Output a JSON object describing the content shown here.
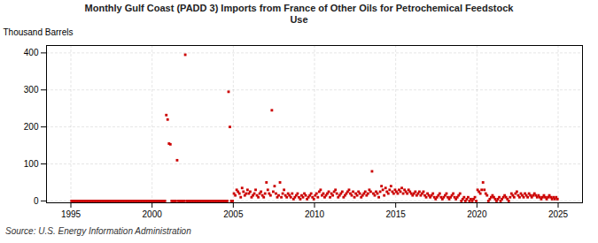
{
  "chart_data": {
    "type": "scatter",
    "title": "Monthly Gulf Coast (PADD 3) Imports from France of Other Oils for Petrochemical Feedstock\nUse",
    "ylabel": "Thousand Barrels",
    "source": "Source: U.S. Energy Information Administration",
    "color": "#cc0000",
    "marker": "square",
    "grid": true,
    "xlim": [
      1993.5,
      2026.5
    ],
    "ylim": [
      -5,
      420
    ],
    "xticks": [
      1995,
      2000,
      2005,
      2010,
      2015,
      2020,
      2025
    ],
    "yticks": [
      0,
      100,
      200,
      300,
      400
    ],
    "x": [
      1995.0416666666667,
      1995.125,
      1995.2083333333333,
      1995.2916666666667,
      1995.375,
      1995.4583333333333,
      1995.5416666666667,
      1995.625,
      1995.7083333333333,
      1995.7916666666667,
      1995.875,
      1995.9583333333333,
      1996.0416666666667,
      1996.125,
      1996.2083333333333,
      1996.2916666666667,
      1996.375,
      1996.4583333333333,
      1996.5416666666667,
      1996.625,
      1996.7083333333333,
      1996.7916666666667,
      1996.875,
      1996.9583333333333,
      1997.0416666666667,
      1997.125,
      1997.2083333333333,
      1997.2916666666667,
      1997.375,
      1997.4583333333333,
      1997.5416666666667,
      1997.625,
      1997.7083333333333,
      1997.7916666666667,
      1997.875,
      1997.9583333333333,
      1998.0416666666667,
      1998.125,
      1998.2083333333333,
      1998.2916666666667,
      1998.375,
      1998.4583333333333,
      1998.5416666666667,
      1998.625,
      1998.7083333333333,
      1998.7916666666667,
      1998.875,
      1998.9583333333333,
      1999.0416666666667,
      1999.125,
      1999.2083333333333,
      1999.2916666666667,
      1999.375,
      1999.4583333333333,
      1999.5416666666667,
      1999.625,
      1999.7083333333333,
      1999.7916666666667,
      1999.875,
      1999.9583333333333,
      2000.0416666666667,
      2000.125,
      2000.2083333333333,
      2000.2916666666667,
      2000.375,
      2000.4583333333333,
      2000.5416666666667,
      2000.625,
      2000.7083333333333,
      2000.7916666666667,
      2000.875,
      2000.9583333333333,
      2001.0416666666667,
      2001.125,
      2001.2083333333333,
      2001.2916666666667,
      2001.375,
      2001.4583333333333,
      2001.5416666666667,
      2001.625,
      2001.7083333333333,
      2001.7916666666667,
      2001.875,
      2001.9583333333333,
      2002.0416666666667,
      2002.125,
      2002.2083333333333,
      2002.2916666666667,
      2002.375,
      2002.4583333333333,
      2002.5416666666667,
      2002.625,
      2002.7083333333333,
      2002.7916666666667,
      2002.875,
      2002.9583333333333,
      2003.0416666666667,
      2003.125,
      2003.2083333333333,
      2003.2916666666667,
      2003.375,
      2003.4583333333333,
      2003.5416666666667,
      2003.625,
      2003.7083333333333,
      2003.7916666666667,
      2003.875,
      2003.9583333333333,
      2004.0416666666667,
      2004.125,
      2004.2083333333333,
      2004.2916666666667,
      2004.375,
      2004.4583333333333,
      2004.5416666666667,
      2004.625,
      2004.7083333333333,
      2004.7916666666667,
      2004.875,
      2004.9583333333333,
      2005.0416666666667,
      2005.125,
      2005.2083333333333,
      2005.2916666666667,
      2005.375,
      2005.4583333333333,
      2005.5416666666667,
      2005.625,
      2005.7083333333333,
      2005.7916666666667,
      2005.875,
      2005.9583333333333,
      2006.0416666666667,
      2006.125,
      2006.2083333333333,
      2006.2916666666667,
      2006.375,
      2006.4583333333333,
      2006.5416666666667,
      2006.625,
      2006.7083333333333,
      2006.7916666666667,
      2006.875,
      2006.9583333333333,
      2007.0416666666667,
      2007.125,
      2007.2083333333333,
      2007.2916666666667,
      2007.375,
      2007.4583333333333,
      2007.5416666666667,
      2007.625,
      2007.7083333333333,
      2007.7916666666667,
      2007.875,
      2007.9583333333333,
      2008.0416666666667,
      2008.125,
      2008.2083333333333,
      2008.2916666666667,
      2008.375,
      2008.4583333333333,
      2008.5416666666667,
      2008.625,
      2008.7083333333333,
      2008.7916666666667,
      2008.875,
      2008.9583333333333,
      2009.0416666666667,
      2009.125,
      2009.2083333333333,
      2009.2916666666667,
      2009.375,
      2009.4583333333333,
      2009.5416666666667,
      2009.625,
      2009.7083333333333,
      2009.7916666666667,
      2009.875,
      2009.9583333333333,
      2010.0416666666667,
      2010.125,
      2010.2083333333333,
      2010.2916666666667,
      2010.375,
      2010.4583333333333,
      2010.5416666666667,
      2010.625,
      2010.7083333333333,
      2010.7916666666667,
      2010.875,
      2010.9583333333333,
      2011.0416666666667,
      2011.125,
      2011.2083333333333,
      2011.2916666666667,
      2011.375,
      2011.4583333333333,
      2011.5416666666667,
      2011.625,
      2011.7083333333333,
      2011.7916666666667,
      2011.875,
      2011.9583333333333,
      2012.0416666666667,
      2012.125,
      2012.2083333333333,
      2012.2916666666667,
      2012.375,
      2012.4583333333333,
      2012.5416666666667,
      2012.625,
      2012.7083333333333,
      2012.7916666666667,
      2012.875,
      2012.9583333333333,
      2013.0416666666667,
      2013.125,
      2013.2083333333333,
      2013.2916666666667,
      2013.375,
      2013.4583333333333,
      2013.5416666666667,
      2013.625,
      2013.7083333333333,
      2013.7916666666667,
      2013.875,
      2013.9583333333333,
      2014.0416666666667,
      2014.125,
      2014.2083333333333,
      2014.2916666666667,
      2014.375,
      2014.4583333333333,
      2014.5416666666667,
      2014.625,
      2014.7083333333333,
      2014.7916666666667,
      2014.875,
      2014.9583333333333,
      2015.0416666666667,
      2015.125,
      2015.2083333333333,
      2015.2916666666667,
      2015.375,
      2015.4583333333333,
      2015.5416666666667,
      2015.625,
      2015.7083333333333,
      2015.7916666666667,
      2015.875,
      2015.9583333333333,
      2016.0416666666667,
      2016.125,
      2016.2083333333333,
      2016.2916666666667,
      2016.375,
      2016.4583333333333,
      2016.5416666666667,
      2016.625,
      2016.7083333333333,
      2016.7916666666667,
      2016.875,
      2016.9583333333333,
      2017.0416666666667,
      2017.125,
      2017.2083333333333,
      2017.2916666666667,
      2017.375,
      2017.4583333333333,
      2017.5416666666667,
      2017.625,
      2017.7083333333333,
      2017.7916666666667,
      2017.875,
      2017.9583333333333,
      2018.0416666666667,
      2018.125,
      2018.2083333333333,
      2018.2916666666667,
      2018.375,
      2018.4583333333333,
      2018.5416666666667,
      2018.625,
      2018.7083333333333,
      2018.7916666666667,
      2018.875,
      2018.9583333333333,
      2019.0416666666667,
      2019.125,
      2019.2083333333333,
      2019.2916666666667,
      2019.375,
      2019.4583333333333,
      2019.5416666666667,
      2019.625,
      2019.7083333333333,
      2019.7916666666667,
      2019.875,
      2019.9583333333333,
      2020.0416666666667,
      2020.125,
      2020.2083333333333,
      2020.2916666666667,
      2020.375,
      2020.4583333333333,
      2020.5416666666667,
      2020.625,
      2020.7083333333333,
      2020.7916666666667,
      2020.875,
      2020.9583333333333,
      2021.0416666666667,
      2021.125,
      2021.2083333333333,
      2021.2916666666667,
      2021.375,
      2021.4583333333333,
      2021.5416666666667,
      2021.625,
      2021.7083333333333,
      2021.7916666666667,
      2021.875,
      2021.9583333333333,
      2022.0416666666667,
      2022.125,
      2022.2083333333333,
      2022.2916666666667,
      2022.375,
      2022.4583333333333,
      2022.5416666666667,
      2022.625,
      2022.7083333333333,
      2022.7916666666667,
      2022.875,
      2022.9583333333333,
      2023.0416666666667,
      2023.125,
      2023.2083333333333,
      2023.2916666666667,
      2023.375,
      2023.4583333333333,
      2023.5416666666667,
      2023.625,
      2023.7083333333333,
      2023.7916666666667,
      2023.875,
      2023.9583333333333,
      2024.0416666666667,
      2024.125,
      2024.2083333333333,
      2024.2916666666667,
      2024.375,
      2024.4583333333333,
      2024.5416666666667,
      2024.625,
      2024.7083333333333,
      2024.7916666666667,
      2024.875,
      2024.9583333333333
    ],
    "values": [
      0,
      0,
      0,
      0,
      0,
      0,
      0,
      0,
      0,
      0,
      0,
      0,
      0,
      0,
      0,
      0,
      0,
      0,
      0,
      0,
      0,
      0,
      0,
      0,
      0,
      0,
      0,
      0,
      0,
      0,
      0,
      0,
      0,
      0,
      0,
      0,
      0,
      0,
      0,
      0,
      0,
      0,
      0,
      0,
      0,
      0,
      0,
      0,
      0,
      0,
      0,
      0,
      0,
      0,
      0,
      0,
      0,
      0,
      0,
      0,
      0,
      0,
      0,
      0,
      0,
      0,
      0,
      0,
      0,
      0,
      232,
      220,
      155,
      153,
      0,
      0,
      0,
      0,
      110,
      0,
      0,
      0,
      0,
      0,
      395,
      0,
      0,
      0,
      0,
      0,
      0,
      0,
      0,
      0,
      0,
      0,
      0,
      0,
      0,
      0,
      0,
      0,
      0,
      0,
      0,
      0,
      0,
      0,
      0,
      0,
      0,
      0,
      0,
      0,
      0,
      0,
      295,
      200,
      0,
      0,
      20,
      15,
      30,
      25,
      20,
      10,
      35,
      25,
      15,
      20,
      30,
      20,
      25,
      10,
      15,
      20,
      30,
      15,
      10,
      20,
      25,
      15,
      10,
      20,
      50,
      30,
      20,
      15,
      245,
      25,
      40,
      20,
      10,
      15,
      50,
      10,
      20,
      30,
      15,
      10,
      20,
      15,
      10,
      20,
      5,
      10,
      15,
      20,
      10,
      5,
      15,
      10,
      20,
      15,
      5,
      10,
      15,
      20,
      10,
      5,
      15,
      20,
      10,
      25,
      30,
      15,
      20,
      10,
      15,
      20,
      25,
      10,
      20,
      15,
      25,
      30,
      20,
      10,
      15,
      20,
      25,
      10,
      15,
      20,
      25,
      30,
      20,
      15,
      25,
      10,
      20,
      15,
      25,
      20,
      10,
      15,
      20,
      25,
      15,
      20,
      30,
      25,
      80,
      20,
      15,
      25,
      20,
      10,
      25,
      40,
      30,
      15,
      35,
      25,
      20,
      30,
      40,
      25,
      20,
      30,
      25,
      20,
      30,
      25,
      35,
      20,
      30,
      25,
      20,
      30,
      25,
      20,
      15,
      20,
      25,
      15,
      20,
      25,
      15,
      20,
      25,
      15,
      10,
      20,
      15,
      10,
      15,
      20,
      10,
      5,
      10,
      15,
      20,
      10,
      5,
      10,
      15,
      20,
      10,
      5,
      10,
      15,
      20,
      10,
      5,
      10,
      15,
      20,
      0,
      5,
      10,
      0,
      5,
      10,
      0,
      5,
      0,
      5,
      10,
      0,
      30,
      25,
      20,
      30,
      50,
      30,
      20,
      15,
      0,
      5,
      10,
      15,
      10,
      5,
      0,
      5,
      10,
      0,
      5,
      10,
      15,
      10,
      5,
      0,
      10,
      20,
      15,
      10,
      20,
      25,
      15,
      10,
      20,
      15,
      10,
      20,
      15,
      10,
      20,
      15,
      10,
      15,
      20,
      15,
      10,
      15,
      10,
      5,
      10,
      15,
      10,
      5,
      10,
      15,
      10,
      5,
      10,
      5,
      10,
      5
    ]
  }
}
